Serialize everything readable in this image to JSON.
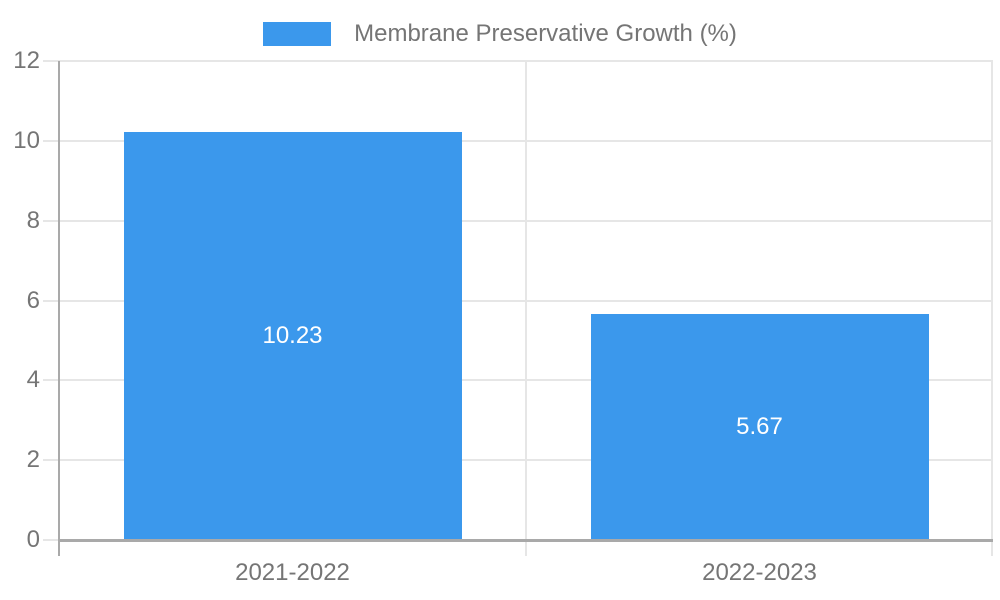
{
  "chart_data": {
    "type": "bar",
    "legend": "Membrane Preservative Growth (%)",
    "legend_position": "top",
    "categories": [
      "2021-2022",
      "2022-2023"
    ],
    "values": [
      10.23,
      5.67
    ],
    "value_labels": [
      "10.23",
      "5.67"
    ],
    "yticks": [
      0,
      2,
      4,
      6,
      8,
      10,
      12
    ],
    "ylim": [
      0,
      12
    ],
    "grid": true,
    "colors": {
      "bar": "#3B98EC",
      "grid": "#E6E6E6",
      "axis": "#A9A9A9",
      "tick_label": "#757575",
      "value_label": "#FFFFFF",
      "background": "#FFFFFF"
    }
  }
}
